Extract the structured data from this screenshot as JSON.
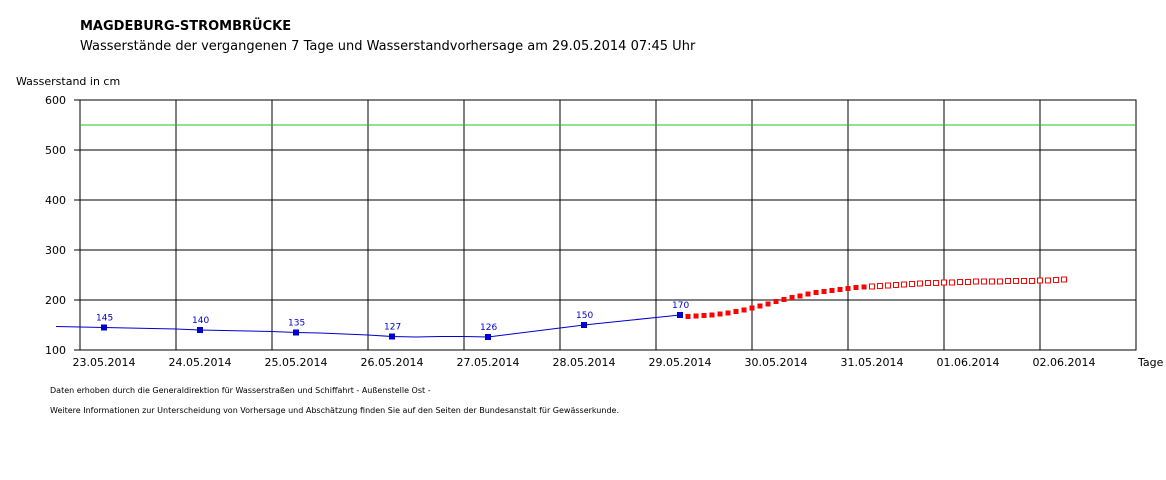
{
  "header": {
    "title": "MAGDEBURG-STROMBRÜCKE",
    "subtitle": "Wasserstände der vergangenen 7 Tage und Wasserstandvorhersage am 29.05.2014 07:45 Uhr"
  },
  "footer": {
    "line1": "Daten erhoben durch die Generaldirektion für Wasserstraßen und Schiffahrt - Außenstelle Ost -",
    "line2": "Weitere Informationen zur Unterscheidung von Vorhersage und Abschätzung finden Sie auf den Seiten der Bundesanstalt für Gewässerkunde."
  },
  "chart_data": {
    "type": "line",
    "ylabel": "Wasserstand in cm",
    "xlabel": "Tage",
    "ylim": [
      100,
      600
    ],
    "yticks": [
      100,
      200,
      300,
      400,
      500,
      600
    ],
    "x_categories": [
      "23.05.2014",
      "24.05.2014",
      "25.05.2014",
      "26.05.2014",
      "27.05.2014",
      "28.05.2014",
      "29.05.2014",
      "30.05.2014",
      "31.05.2014",
      "01.06.2014",
      "02.06.2014"
    ],
    "grid": true,
    "reference_line": {
      "value": 550,
      "color": "#22c022"
    },
    "series": [
      {
        "kind": "measured",
        "color": "#0000cc",
        "x": [
          -0.5,
          -0.25,
          0,
          0.25,
          0.5,
          0.75,
          1,
          1.25,
          1.5,
          1.75,
          2,
          2.25,
          2.5,
          2.75,
          3,
          3.25,
          3.5,
          3.75,
          4,
          4.25,
          4.5,
          4.75,
          5,
          5.25,
          5.5,
          5.75,
          6
        ],
        "y": [
          147,
          146,
          145,
          144,
          143,
          142,
          140,
          139,
          138,
          137,
          135,
          134,
          132,
          130,
          127,
          126,
          127,
          127,
          126,
          132,
          138,
          144,
          150,
          155,
          160,
          165,
          170
        ],
        "markers": [
          {
            "x": 0,
            "y": 145,
            "label": "145"
          },
          {
            "x": 1,
            "y": 140,
            "label": "140"
          },
          {
            "x": 2,
            "y": 135,
            "label": "135"
          },
          {
            "x": 3,
            "y": 127,
            "label": "127"
          },
          {
            "x": 4,
            "y": 126,
            "label": "126"
          },
          {
            "x": 5,
            "y": 150,
            "label": "150"
          },
          {
            "x": 6,
            "y": 170,
            "label": "170"
          }
        ]
      },
      {
        "kind": "forecast",
        "color": "#ff0000",
        "x": [
          6.083,
          6.167,
          6.25,
          6.333,
          6.417,
          6.5,
          6.583,
          6.667,
          6.75,
          6.833,
          6.917,
          7,
          7.083,
          7.167,
          7.25,
          7.333,
          7.417,
          7.5,
          7.583,
          7.667,
          7.75,
          7.833,
          7.917
        ],
        "y": [
          167,
          168,
          169,
          170,
          172,
          174,
          177,
          180,
          184,
          188,
          192,
          197,
          201,
          205,
          208,
          212,
          215,
          217,
          219,
          221,
          223,
          225,
          226
        ]
      },
      {
        "kind": "estimate",
        "color": "#ff0000",
        "x": [
          8,
          8.083,
          8.167,
          8.25,
          8.333,
          8.417,
          8.5,
          8.583,
          8.667,
          8.75,
          8.833,
          8.917,
          9,
          9.083,
          9.167,
          9.25,
          9.333,
          9.417,
          9.5,
          9.583,
          9.667,
          9.75,
          9.833,
          9.917,
          10
        ],
        "y": [
          227,
          228,
          229,
          230,
          231,
          232,
          233,
          234,
          234,
          235,
          235,
          236,
          236,
          237,
          237,
          237,
          237,
          238,
          238,
          238,
          238,
          239,
          239,
          240,
          241
        ]
      }
    ]
  }
}
